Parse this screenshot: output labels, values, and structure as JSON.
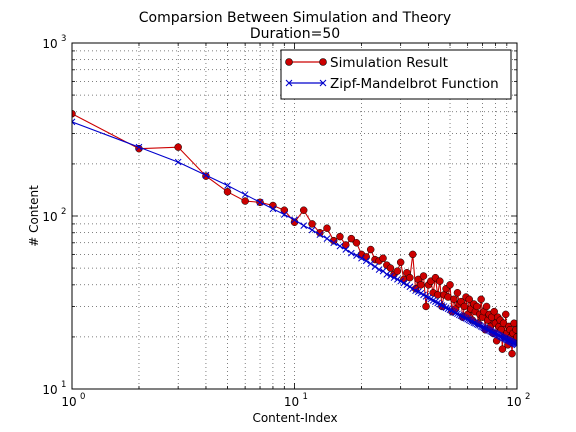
{
  "chart_data": {
    "type": "line",
    "title": "Comparsion Between Simulation and Theory",
    "subtitle": "Duration=50",
    "xlabel": "Content-Index",
    "ylabel": "# Content",
    "xscale": "log",
    "yscale": "log",
    "xlim": [
      1,
      100
    ],
    "ylim": [
      10,
      1000
    ],
    "grid": true,
    "legend_position": "top-right",
    "x_ticks": [
      {
        "value": 1,
        "base": "10",
        "exp": "0"
      },
      {
        "value": 10,
        "base": "10",
        "exp": "1"
      },
      {
        "value": 100,
        "base": "10",
        "exp": "2"
      }
    ],
    "y_ticks": [
      {
        "value": 10,
        "base": "10",
        "exp": "1"
      },
      {
        "value": 100,
        "base": "10",
        "exp": "2"
      },
      {
        "value": 1000,
        "base": "10",
        "exp": "3"
      }
    ],
    "series": [
      {
        "name": "Simulation Result",
        "color": "#cc0000",
        "marker": "circle",
        "x": [
          1,
          2,
          3,
          4,
          5,
          6,
          7,
          8,
          9,
          10,
          11,
          12,
          13,
          14,
          15,
          16,
          17,
          18,
          19,
          20,
          21,
          22,
          23,
          24,
          25,
          26,
          27,
          28,
          29,
          30,
          31,
          32,
          33,
          34,
          35,
          36,
          37,
          38,
          39,
          40,
          41,
          42,
          43,
          44,
          45,
          46,
          47,
          48,
          49,
          50,
          51,
          52,
          53,
          54,
          55,
          56,
          57,
          58,
          59,
          60,
          61,
          62,
          63,
          64,
          65,
          66,
          67,
          68,
          69,
          70,
          71,
          72,
          73,
          74,
          75,
          76,
          77,
          78,
          79,
          80,
          81,
          82,
          83,
          84,
          85,
          86,
          87,
          88,
          89,
          90,
          91,
          92,
          93,
          94,
          95,
          96,
          97,
          98,
          99,
          100
        ],
        "y": [
          390,
          245,
          250,
          170,
          138,
          122,
          120,
          115,
          108,
          92,
          108,
          90,
          80,
          85,
          72,
          76,
          68,
          74,
          70,
          60,
          58,
          64,
          56,
          55,
          57,
          52,
          50,
          46,
          48,
          54,
          43,
          47,
          44,
          60,
          38,
          43,
          40,
          45,
          30,
          40,
          42,
          36,
          44,
          35,
          42,
          30,
          35,
          38,
          34,
          40,
          28,
          33,
          29,
          36,
          31,
          32,
          26,
          30,
          34,
          27,
          33,
          29,
          25,
          31,
          28,
          30,
          24,
          27,
          33,
          26,
          28,
          22,
          30,
          25,
          27,
          23,
          26,
          21,
          28,
          24,
          19,
          26,
          23,
          25,
          22,
          17,
          24,
          20,
          27,
          21,
          18,
          23,
          22,
          20,
          16,
          21,
          24,
          19,
          22,
          20
        ]
      },
      {
        "name": "Zipf-Mandelbrot Function",
        "color": "#0000cc",
        "marker": "x",
        "x": [
          1,
          2,
          3,
          4,
          5,
          6,
          7,
          8,
          9,
          10,
          11,
          12,
          13,
          14,
          15,
          16,
          17,
          18,
          19,
          20,
          21,
          22,
          23,
          24,
          25,
          26,
          27,
          28,
          29,
          30,
          31,
          32,
          33,
          34,
          35,
          36,
          37,
          38,
          39,
          40,
          41,
          42,
          43,
          44,
          45,
          46,
          47,
          48,
          49,
          50,
          51,
          52,
          53,
          54,
          55,
          56,
          57,
          58,
          59,
          60,
          61,
          62,
          63,
          64,
          65,
          66,
          67,
          68,
          69,
          70,
          71,
          72,
          73,
          74,
          75,
          76,
          77,
          78,
          79,
          80,
          81,
          82,
          83,
          84,
          85,
          86,
          87,
          88,
          89,
          90,
          91,
          92,
          93,
          94,
          95,
          96,
          97,
          98,
          99,
          100
        ],
        "y": [
          350,
          250,
          205,
          172,
          150,
          133,
          120,
          110,
          102,
          95,
          88,
          83,
          78,
          74,
          70,
          67,
          64,
          61,
          59,
          57,
          55,
          53,
          51,
          49,
          48,
          46,
          45,
          44,
          43,
          42,
          41,
          40,
          39,
          38,
          37,
          36.5,
          35.8,
          35,
          34.3,
          33.7,
          33.1,
          32.5,
          32,
          31.4,
          30.9,
          30.4,
          30,
          29.5,
          29.1,
          28.7,
          28.3,
          27.9,
          27.5,
          27.2,
          26.8,
          26.5,
          26.2,
          25.9,
          25.6,
          25.3,
          25,
          24.7,
          24.5,
          24.2,
          24,
          23.7,
          23.5,
          23.3,
          23,
          22.8,
          22.6,
          22.4,
          22.2,
          22,
          21.8,
          21.6,
          21.4,
          21.2,
          21.05,
          20.9,
          20.7,
          20.55,
          20.4,
          20.2,
          20.05,
          19.9,
          19.75,
          19.6,
          19.45,
          19.3,
          19.2,
          19.05,
          18.9,
          18.8,
          18.65,
          18.5,
          18.4,
          18.3,
          18.15,
          18.0
        ]
      }
    ]
  }
}
